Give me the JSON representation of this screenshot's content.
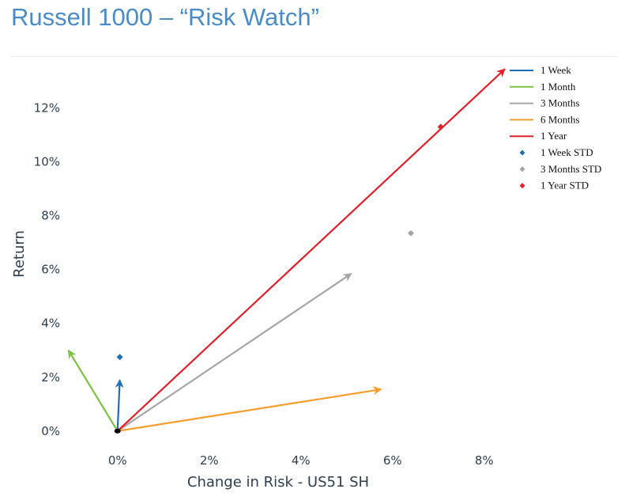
{
  "page": {
    "title": "Russell 1000 – “Risk Watch”"
  },
  "chart_data": {
    "type": "scatter",
    "xlabel": "Change in Risk - US51 SH",
    "ylabel": "Return",
    "xlim": [
      -1.15,
      8.9
    ],
    "ylim": [
      -0.8,
      13.9
    ],
    "xticks": [
      0,
      2,
      4,
      6,
      8
    ],
    "yticks": [
      0,
      2,
      4,
      6,
      8,
      10,
      12
    ],
    "tick_format": "percent",
    "grid": false,
    "legend_position": "top-right",
    "origin": [
      0,
      0
    ],
    "origin_color": "#000000",
    "vectors": [
      {
        "name": "1 Week",
        "color": "#1f6fb5",
        "x": 0.05,
        "y": 1.9
      },
      {
        "name": "1 Month",
        "color": "#7dc242",
        "x": -1.07,
        "y": 3.0
      },
      {
        "name": "3 Months",
        "color": "#a6a6a6",
        "x": 5.1,
        "y": 5.85
      },
      {
        "name": "6 Months",
        "color": "#f59d2a",
        "x": 5.75,
        "y": 1.55
      },
      {
        "name": "1 Year",
        "color": "#e0202a",
        "x": 8.45,
        "y": 13.45
      }
    ],
    "std_points": [
      {
        "name": "1 Week STD",
        "color": "#1f6fb5",
        "x": 0.05,
        "y": 2.75
      },
      {
        "name": "3 Months STD",
        "color": "#a6a6a6",
        "x": 6.4,
        "y": 7.35
      },
      {
        "name": "1 Year STD",
        "color": "#e0202a",
        "x": 7.05,
        "y": 11.3
      }
    ]
  }
}
